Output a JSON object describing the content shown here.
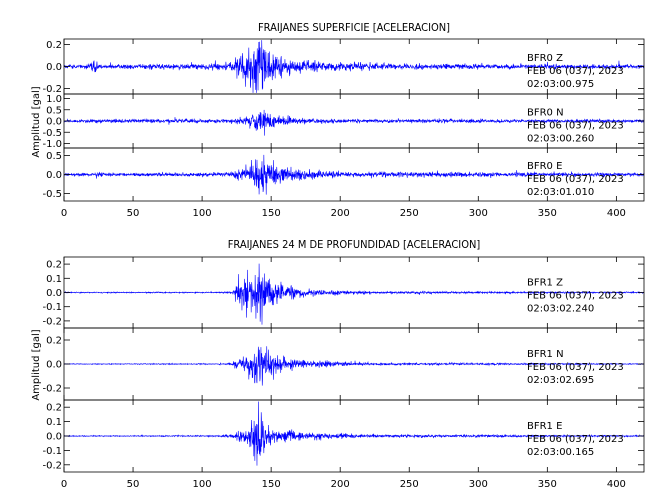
{
  "chart_data": [
    {
      "type": "line",
      "title": "FRAIJANES SUPERFICIE [ACELERACION]",
      "ylabel": "Amplitud [gal]",
      "xlim": [
        0,
        420
      ],
      "x_ticks": [
        "0",
        "50",
        "100",
        "150",
        "200",
        "250",
        "300",
        "350",
        "400"
      ],
      "series_color": "#0000ff",
      "panels": [
        {
          "name": "Z",
          "ylim": [
            -0.25,
            0.25
          ],
          "y_ticks": [
            {
              "v": 0.2,
              "label": "0.2"
            },
            {
              "v": 0.0,
              "label": "0.0"
            },
            {
              "v": -0.2,
              "label": "-0.2"
            }
          ],
          "annotation": [
            "BFR0   Z",
            "FEB 06 (037), 2023",
            "02:03:00.975"
          ],
          "envelope": [
            [
              0,
              0.012
            ],
            [
              18,
              0.02
            ],
            [
              22,
              0.06
            ],
            [
              26,
              0.02
            ],
            [
              70,
              0.02
            ],
            [
              100,
              0.025
            ],
            [
              120,
              0.03
            ],
            [
              126,
              0.1
            ],
            [
              133,
              0.14
            ],
            [
              140,
              0.22
            ],
            [
              145,
              0.2
            ],
            [
              150,
              0.12
            ],
            [
              165,
              0.06
            ],
            [
              190,
              0.04
            ],
            [
              250,
              0.025
            ],
            [
              350,
              0.02
            ],
            [
              420,
              0.015
            ]
          ]
        },
        {
          "name": "N",
          "ylim": [
            -1.2,
            1.2
          ],
          "y_ticks": [
            {
              "v": 1.0,
              "label": "1.0"
            },
            {
              "v": 0.5,
              "label": "0.5"
            },
            {
              "v": 0.0,
              "label": "0.0"
            },
            {
              "v": -0.5,
              "label": "-0.5"
            },
            {
              "v": -1.0,
              "label": "-1.0"
            }
          ],
          "annotation": [
            "BFR0   N",
            "FEB 06 (037), 2023",
            "02:03:00.260"
          ],
          "envelope": [
            [
              0,
              0.05
            ],
            [
              20,
              0.07
            ],
            [
              24,
              0.12
            ],
            [
              28,
              0.07
            ],
            [
              120,
              0.08
            ],
            [
              130,
              0.15
            ],
            [
              138,
              0.3
            ],
            [
              143,
              0.65
            ],
            [
              148,
              0.3
            ],
            [
              160,
              0.15
            ],
            [
              200,
              0.08
            ],
            [
              420,
              0.06
            ]
          ]
        },
        {
          "name": "E",
          "ylim": [
            -0.7,
            0.7
          ],
          "y_ticks": [
            {
              "v": 0.5,
              "label": "0.5"
            },
            {
              "v": 0.0,
              "label": "0.0"
            },
            {
              "v": -0.5,
              "label": "-0.5"
            }
          ],
          "annotation": [
            "BFR0   E",
            "FEB 06 (037), 2023",
            "02:03:01.010"
          ],
          "envelope": [
            [
              0,
              0.03
            ],
            [
              20,
              0.04
            ],
            [
              24,
              0.09
            ],
            [
              28,
              0.04
            ],
            [
              120,
              0.05
            ],
            [
              128,
              0.15
            ],
            [
              137,
              0.3
            ],
            [
              143,
              0.65
            ],
            [
              148,
              0.35
            ],
            [
              160,
              0.15
            ],
            [
              200,
              0.07
            ],
            [
              420,
              0.04
            ]
          ]
        }
      ]
    },
    {
      "type": "line",
      "title": "FRAIJANES 24 M DE PROFUNDIDAD [ACELERACION]",
      "ylabel": "Amplitud [gal]",
      "xlim": [
        0,
        420
      ],
      "x_ticks": [
        "0",
        "50",
        "100",
        "150",
        "200",
        "250",
        "300",
        "350",
        "400"
      ],
      "series_color": "#0000ff",
      "panels": [
        {
          "name": "Z",
          "ylim": [
            -0.25,
            0.25
          ],
          "y_ticks": [
            {
              "v": 0.2,
              "label": "0.2"
            },
            {
              "v": 0.1,
              "label": "0.1"
            },
            {
              "v": 0.0,
              "label": "0.0"
            },
            {
              "v": -0.1,
              "label": "-0.1"
            },
            {
              "v": -0.2,
              "label": "-0.2"
            }
          ],
          "annotation": [
            "BFR1   Z",
            "FEB 06 (037), 2023",
            "02:03:02.240"
          ],
          "envelope": [
            [
              0,
              0.003
            ],
            [
              110,
              0.004
            ],
            [
              122,
              0.008
            ],
            [
              126,
              0.08
            ],
            [
              133,
              0.13
            ],
            [
              140,
              0.21
            ],
            [
              145,
              0.18
            ],
            [
              150,
              0.1
            ],
            [
              160,
              0.05
            ],
            [
              180,
              0.02
            ],
            [
              220,
              0.008
            ],
            [
              420,
              0.004
            ]
          ]
        },
        {
          "name": "N",
          "ylim": [
            -0.3,
            0.3
          ],
          "y_ticks": [
            {
              "v": 0.2,
              "label": "0.2"
            },
            {
              "v": 0.0,
              "label": "0.0"
            },
            {
              "v": -0.2,
              "label": "-0.2"
            }
          ],
          "annotation": [
            "BFR1   N",
            "FEB 06 (037), 2023",
            "02:03:02.695"
          ],
          "envelope": [
            [
              0,
              0.003
            ],
            [
              110,
              0.004
            ],
            [
              122,
              0.01
            ],
            [
              128,
              0.05
            ],
            [
              135,
              0.09
            ],
            [
              141,
              0.25
            ],
            [
              146,
              0.14
            ],
            [
              155,
              0.07
            ],
            [
              175,
              0.03
            ],
            [
              220,
              0.01
            ],
            [
              420,
              0.004
            ]
          ]
        },
        {
          "name": "E",
          "ylim": [
            -0.25,
            0.25
          ],
          "y_ticks": [
            {
              "v": 0.2,
              "label": "0.2"
            },
            {
              "v": 0.1,
              "label": "0.1"
            },
            {
              "v": 0.0,
              "label": "0.0"
            },
            {
              "v": -0.1,
              "label": "-0.1"
            },
            {
              "v": -0.2,
              "label": "-0.2"
            }
          ],
          "annotation": [
            "BFR1   E",
            "FEB 06 (037), 2023",
            "02:03:00.165"
          ],
          "envelope": [
            [
              0,
              0.003
            ],
            [
              110,
              0.004
            ],
            [
              122,
              0.01
            ],
            [
              127,
              0.04
            ],
            [
              134,
              0.06
            ],
            [
              141,
              0.2
            ],
            [
              146,
              0.1
            ],
            [
              155,
              0.05
            ],
            [
              175,
              0.025
            ],
            [
              220,
              0.01
            ],
            [
              420,
              0.004
            ]
          ]
        }
      ]
    }
  ]
}
